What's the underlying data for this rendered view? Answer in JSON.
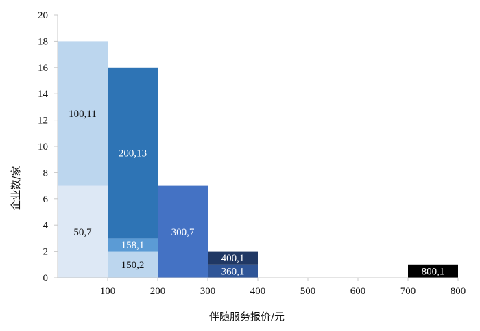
{
  "chart_data": {
    "type": "bar",
    "stacked": true,
    "title": "",
    "xlabel": "伴随服务报价/元",
    "ylabel": "企业数/家",
    "xlim": [
      0,
      800
    ],
    "ylim": [
      0,
      20
    ],
    "x_ticks": [
      "100",
      "200",
      "300",
      "400",
      "500",
      "600",
      "700",
      "800"
    ],
    "y_ticks": [
      "0",
      "2",
      "4",
      "6",
      "8",
      "10",
      "12",
      "14",
      "16",
      "18",
      "20"
    ],
    "grid": false,
    "legend": "none",
    "bars": [
      {
        "x_start": 0,
        "x_end": 100,
        "segments": [
          {
            "label": "50,7",
            "price": 50,
            "count": 7,
            "color": "#dde8f5",
            "text_color": "#111111"
          },
          {
            "label": "100,11",
            "price": 100,
            "count": 11,
            "color": "#bcd6ee",
            "text_color": "#111111"
          }
        ]
      },
      {
        "x_start": 100,
        "x_end": 200,
        "segments": [
          {
            "label": "150,2",
            "price": 150,
            "count": 2,
            "color": "#bcd6ee",
            "text_color": "#111111"
          },
          {
            "label": "158,1",
            "price": 158,
            "count": 1,
            "color": "#5b9bd5",
            "text_color": "#ffffff"
          },
          {
            "label": "200,13",
            "price": 200,
            "count": 13,
            "color": "#2e74b5",
            "text_color": "#ffffff"
          }
        ]
      },
      {
        "x_start": 200,
        "x_end": 300,
        "segments": [
          {
            "label": "300,7",
            "price": 300,
            "count": 7,
            "color": "#4472c4",
            "text_color": "#ffffff"
          }
        ]
      },
      {
        "x_start": 300,
        "x_end": 400,
        "segments": [
          {
            "label": "360,1",
            "price": 360,
            "count": 1,
            "color": "#2f5597",
            "text_color": "#ffffff"
          },
          {
            "label": "400,1",
            "price": 400,
            "count": 1,
            "color": "#203864",
            "text_color": "#ffffff"
          }
        ]
      },
      {
        "x_start": 700,
        "x_end": 800,
        "segments": [
          {
            "label": "800,1",
            "price": 800,
            "count": 1,
            "color": "#000000",
            "text_color": "#ffffff"
          }
        ]
      }
    ]
  }
}
